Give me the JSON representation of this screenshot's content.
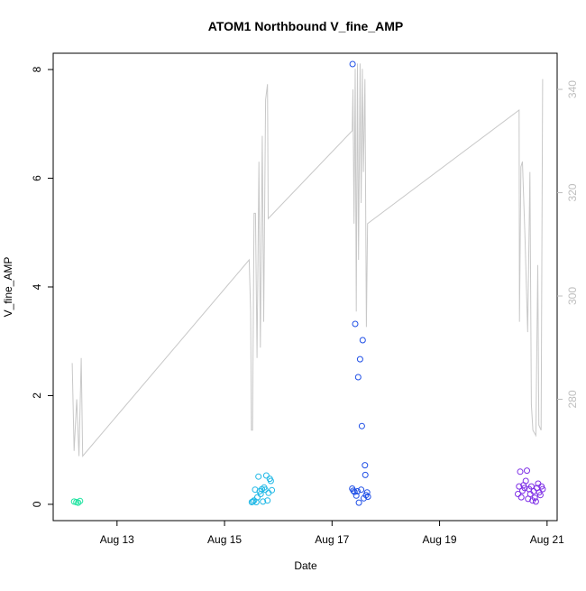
{
  "chart_data": {
    "type": "scatter",
    "title": "ATOM1 Northbound V_fine_AMP",
    "xlabel": "Date",
    "ylabel": "V_fine_AMP",
    "x_ticks": [
      "Aug 13",
      "Aug 15",
      "Aug 17",
      "Aug 19",
      "Aug 21"
    ],
    "x_tick_values": [
      "2018-08-13",
      "2018-08-15",
      "2018-08-17",
      "2018-08-19",
      "2018-08-21"
    ],
    "x_range": [
      "2018-08-11 19:30",
      "2018-08-21 04:30"
    ],
    "ylim": [
      -0.3,
      8.3
    ],
    "y_ticks": [
      "0",
      "2",
      "4",
      "6",
      "8"
    ],
    "y2_ticks": [
      "280",
      "300",
      "320",
      "340"
    ],
    "y2lim": [
      256.5,
      347
    ],
    "grid": false,
    "colors": {
      "axis": "#000000",
      "secondary_axis": "#bebebe",
      "line": "#c8c8c8"
    },
    "series": [
      {
        "color": "#1fe3a1",
        "points": [
          [
            "2018-08-12 04:50",
            0.05
          ],
          [
            "2018-08-12 05:50",
            0.04
          ],
          [
            "2018-08-12 06:40",
            0.03
          ],
          [
            "2018-08-12 07:30",
            0.06
          ]
        ]
      },
      {
        "color": "#1fb8e6",
        "points": [
          [
            "2018-08-15 12:10",
            0.04
          ],
          [
            "2018-08-15 12:40",
            0.05
          ],
          [
            "2018-08-15 13:10",
            0.07
          ],
          [
            "2018-08-15 13:40",
            0.27
          ],
          [
            "2018-08-15 14:10",
            0.04
          ],
          [
            "2018-08-15 14:40",
            0.13
          ],
          [
            "2018-08-15 15:10",
            0.51
          ],
          [
            "2018-08-15 15:40",
            0.24
          ],
          [
            "2018-08-15 16:10",
            0.19
          ],
          [
            "2018-08-15 16:40",
            0.28
          ],
          [
            "2018-08-15 17:10",
            0.05
          ],
          [
            "2018-08-15 17:40",
            0.31
          ],
          [
            "2018-08-15 18:10",
            0.27
          ],
          [
            "2018-08-15 18:40",
            0.53
          ],
          [
            "2018-08-15 19:10",
            0.07
          ],
          [
            "2018-08-15 19:40",
            0.21
          ],
          [
            "2018-08-15 20:10",
            0.47
          ],
          [
            "2018-08-15 20:40",
            0.43
          ],
          [
            "2018-08-15 21:10",
            0.26
          ]
        ]
      },
      {
        "color": "#1f4fe6",
        "points": [
          [
            "2018-08-17 09:10",
            8.1
          ],
          [
            "2018-08-17 09:00",
            0.29
          ],
          [
            "2018-08-17 09:30",
            0.25
          ],
          [
            "2018-08-17 10:00",
            0.23
          ],
          [
            "2018-08-17 10:20",
            3.32
          ],
          [
            "2018-08-17 10:50",
            0.16
          ],
          [
            "2018-08-17 11:20",
            0.24
          ],
          [
            "2018-08-17 11:40",
            2.34
          ],
          [
            "2018-08-17 12:00",
            0.03
          ],
          [
            "2018-08-17 12:30",
            2.67
          ],
          [
            "2018-08-17 13:00",
            0.27
          ],
          [
            "2018-08-17 13:20",
            1.44
          ],
          [
            "2018-08-17 13:40",
            3.02
          ],
          [
            "2018-08-17 14:10",
            0.11
          ],
          [
            "2018-08-17 14:40",
            0.72
          ],
          [
            "2018-08-17 14:50",
            0.54
          ],
          [
            "2018-08-17 15:10",
            0.17
          ],
          [
            "2018-08-17 15:40",
            0.22
          ],
          [
            "2018-08-17 16:00",
            0.14
          ]
        ]
      },
      {
        "color": "#7e2fe6",
        "points": [
          [
            "2018-08-20 11:00",
            0.19
          ],
          [
            "2018-08-20 11:30",
            0.33
          ],
          [
            "2018-08-20 12:00",
            0.6
          ],
          [
            "2018-08-20 12:30",
            0.13
          ],
          [
            "2018-08-20 13:00",
            0.25
          ],
          [
            "2018-08-20 13:30",
            0.35
          ],
          [
            "2018-08-20 14:00",
            0.3
          ],
          [
            "2018-08-20 14:30",
            0.43
          ],
          [
            "2018-08-20 15:00",
            0.62
          ],
          [
            "2018-08-20 15:30",
            0.1
          ],
          [
            "2018-08-20 16:00",
            0.28
          ],
          [
            "2018-08-20 16:30",
            0.19
          ],
          [
            "2018-08-20 17:00",
            0.33
          ],
          [
            "2018-08-20 17:30",
            0.07
          ],
          [
            "2018-08-20 18:00",
            0.24
          ],
          [
            "2018-08-20 18:30",
            0.12
          ],
          [
            "2018-08-20 19:00",
            0.05
          ],
          [
            "2018-08-20 19:30",
            0.3
          ],
          [
            "2018-08-20 20:00",
            0.38
          ],
          [
            "2018-08-20 20:30",
            0.22
          ],
          [
            "2018-08-20 21:00",
            0.17
          ],
          [
            "2018-08-20 21:30",
            0.33
          ],
          [
            "2018-08-20 22:00",
            0.28
          ]
        ]
      }
    ],
    "secondary_line": {
      "axis": "y2",
      "color": "#c8c8c8",
      "points": [
        [
          "2018-08-12 04:00",
          287
        ],
        [
          "2018-08-12 04:50",
          270
        ],
        [
          "2018-08-12 06:00",
          280
        ],
        [
          "2018-08-12 07:00",
          269
        ],
        [
          "2018-08-12 08:00",
          288
        ],
        [
          "2018-08-12 08:40",
          269
        ],
        [
          "2018-08-15 11:00",
          307
        ],
        [
          "2018-08-15 11:40",
          297
        ],
        [
          "2018-08-15 12:00",
          274
        ],
        [
          "2018-08-15 12:30",
          274
        ],
        [
          "2018-08-15 13:10",
          316
        ],
        [
          "2018-08-15 13:50",
          316
        ],
        [
          "2018-08-15 14:30",
          288
        ],
        [
          "2018-08-15 15:20",
          326
        ],
        [
          "2018-08-15 16:00",
          290
        ],
        [
          "2018-08-15 16:50",
          331
        ],
        [
          "2018-08-15 17:30",
          295
        ],
        [
          "2018-08-15 18:20",
          338
        ],
        [
          "2018-08-15 19:10",
          341
        ],
        [
          "2018-08-15 19:30",
          315
        ],
        [
          "2018-08-17 09:00",
          332
        ],
        [
          "2018-08-17 09:20",
          340
        ],
        [
          "2018-08-17 09:50",
          314
        ],
        [
          "2018-08-17 10:20",
          344
        ],
        [
          "2018-08-17 10:50",
          297
        ],
        [
          "2018-08-17 11:20",
          345
        ],
        [
          "2018-08-17 11:50",
          307
        ],
        [
          "2018-08-17 12:30",
          345
        ],
        [
          "2018-08-17 13:00",
          318
        ],
        [
          "2018-08-17 13:30",
          344
        ],
        [
          "2018-08-17 14:00",
          324
        ],
        [
          "2018-08-17 14:40",
          342
        ],
        [
          "2018-08-17 15:20",
          294
        ],
        [
          "2018-08-17 15:50",
          314
        ],
        [
          "2018-08-20 11:30",
          336
        ],
        [
          "2018-08-20 11:40",
          295
        ],
        [
          "2018-08-20 12:20",
          325
        ],
        [
          "2018-08-20 13:00",
          326
        ],
        [
          "2018-08-20 14:10",
          311
        ],
        [
          "2018-08-20 15:20",
          293
        ],
        [
          "2018-08-20 16:20",
          324
        ],
        [
          "2018-08-20 17:00",
          279
        ],
        [
          "2018-08-20 17:40",
          274
        ],
        [
          "2018-08-20 19:00",
          273
        ],
        [
          "2018-08-20 19:50",
          306
        ],
        [
          "2018-08-20 20:20",
          275
        ],
        [
          "2018-08-20 21:20",
          274
        ],
        [
          "2018-08-20 22:00",
          342
        ]
      ]
    }
  }
}
